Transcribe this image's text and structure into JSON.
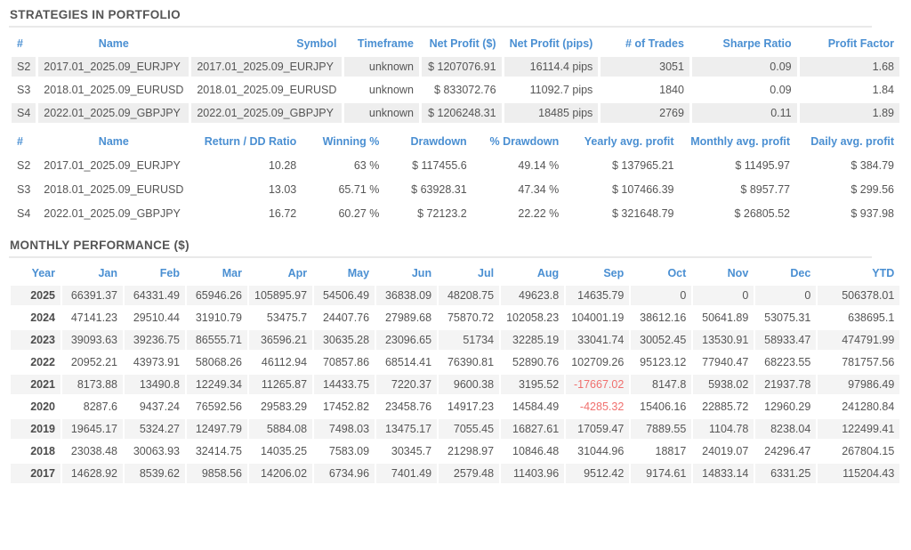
{
  "colors": {
    "accent_blue": "#4a8fd2",
    "negative_red": "#f0706e",
    "cell_gray": "#eeeeee",
    "stripe_gray": "#f4f4f4",
    "title_gray": "#555555"
  },
  "strategies_section": {
    "title": "STRATEGIES IN PORTFOLIO"
  },
  "monthly_section": {
    "title": "MONTHLY PERFORMANCE ($)"
  },
  "strategies_table": {
    "headers": [
      "#",
      "Name",
      "Symbol",
      "Timeframe",
      "Net Profit ($)",
      "Net Profit (pips)",
      "# of Trades",
      "Sharpe Ratio",
      "Profit Factor"
    ],
    "rows": [
      [
        "S2",
        "2017.01_2025.09_EURJPY",
        "2017.01_2025.09_EURJPY",
        "unknown",
        "$ 1207076.91",
        "16114.4 pips",
        "3051",
        "0.09",
        "1.68"
      ],
      [
        "S3",
        "2018.01_2025.09_EURUSD",
        "2018.01_2025.09_EURUSD",
        "unknown",
        "$ 833072.76",
        "11092.7 pips",
        "1840",
        "0.09",
        "1.84"
      ],
      [
        "S4",
        "2022.01_2025.09_GBPJPY",
        "2022.01_2025.09_GBPJPY",
        "unknown",
        "$ 1206248.31",
        "18485 pips",
        "2769",
        "0.11",
        "1.89"
      ]
    ]
  },
  "stats_table": {
    "headers": [
      "#",
      "Name",
      "Return / DD Ratio",
      "Winning %",
      "Drawdown",
      "% Drawdown",
      "Yearly avg. profit",
      "Monthly avg. profit",
      "Daily avg. profit"
    ],
    "rows": [
      [
        "S2",
        "2017.01_2025.09_EURJPY",
        "10.28",
        "63 %",
        "$ 117455.6",
        "49.14 %",
        "$ 137965.21",
        "$ 11495.97",
        "$ 384.79"
      ],
      [
        "S3",
        "2018.01_2025.09_EURUSD",
        "13.03",
        "65.71 %",
        "$ 63928.31",
        "47.34 %",
        "$ 107466.39",
        "$ 8957.77",
        "$ 299.56"
      ],
      [
        "S4",
        "2022.01_2025.09_GBPJPY",
        "16.72",
        "60.27 %",
        "$ 72123.2",
        "22.22 %",
        "$ 321648.79",
        "$ 26805.52",
        "$ 937.98"
      ]
    ]
  },
  "monthly_table": {
    "headers": [
      "Year",
      "Jan",
      "Feb",
      "Mar",
      "Apr",
      "May",
      "Jun",
      "Jul",
      "Aug",
      "Sep",
      "Oct",
      "Nov",
      "Dec",
      "YTD"
    ],
    "rows": [
      [
        "2025",
        "66391.37",
        "64331.49",
        "65946.26",
        "105895.97",
        "54506.49",
        "36838.09",
        "48208.75",
        "49623.8",
        "14635.79",
        "0",
        "0",
        "0",
        "506378.01"
      ],
      [
        "2024",
        "47141.23",
        "29510.44",
        "31910.79",
        "53475.7",
        "24407.76",
        "27989.68",
        "75870.72",
        "102058.23",
        "104001.19",
        "38612.16",
        "50641.89",
        "53075.31",
        "638695.1"
      ],
      [
        "2023",
        "39093.63",
        "39236.75",
        "86555.71",
        "36596.21",
        "30635.28",
        "23096.65",
        "51734",
        "32285.19",
        "33041.74",
        "30052.45",
        "13530.91",
        "58933.47",
        "474791.99"
      ],
      [
        "2022",
        "20952.21",
        "43973.91",
        "58068.26",
        "46112.94",
        "70857.86",
        "68514.41",
        "76390.81",
        "52890.76",
        "102709.26",
        "95123.12",
        "77940.47",
        "68223.55",
        "781757.56"
      ],
      [
        "2021",
        "8173.88",
        "13490.8",
        "12249.34",
        "11265.87",
        "14433.75",
        "7220.37",
        "9600.38",
        "3195.52",
        "-17667.02",
        "8147.8",
        "5938.02",
        "21937.78",
        "97986.49"
      ],
      [
        "2020",
        "8287.6",
        "9437.24",
        "76592.56",
        "29583.29",
        "17452.82",
        "23458.76",
        "14917.23",
        "14584.49",
        "-4285.32",
        "15406.16",
        "22885.72",
        "12960.29",
        "241280.84"
      ],
      [
        "2019",
        "19645.17",
        "5324.27",
        "12497.79",
        "5884.08",
        "7498.03",
        "13475.17",
        "7055.45",
        "16827.61",
        "17059.47",
        "7889.55",
        "1104.78",
        "8238.04",
        "122499.41"
      ],
      [
        "2018",
        "23038.48",
        "30063.93",
        "32414.75",
        "14035.25",
        "7583.09",
        "30345.7",
        "21298.97",
        "10846.48",
        "31044.96",
        "18817",
        "24019.07",
        "24296.47",
        "267804.15"
      ],
      [
        "2017",
        "14628.92",
        "8539.62",
        "9858.56",
        "14206.02",
        "6734.96",
        "7401.49",
        "2579.48",
        "11403.96",
        "9512.42",
        "9174.61",
        "14833.14",
        "6331.25",
        "115204.43"
      ]
    ]
  }
}
